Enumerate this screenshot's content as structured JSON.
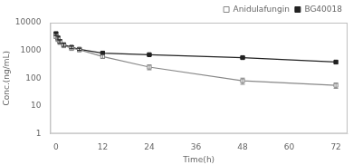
{
  "chart_data": {
    "type": "line",
    "xlabel": "Time(h)",
    "ylabel": "Conc.(ng/mL)",
    "x": [
      0,
      0.5,
      1,
      2,
      4,
      6,
      12,
      24,
      48,
      72
    ],
    "series": [
      {
        "name": "Anidulafungin",
        "color": "#888888",
        "marker": "square_open",
        "values": [
          3200,
          2500,
          2000,
          1500,
          1200,
          1050,
          600,
          250,
          80,
          55
        ],
        "yerr": [
          500,
          400,
          350,
          250,
          200,
          150,
          80,
          50,
          20,
          12
        ]
      },
      {
        "name": "BG40018",
        "color": "#222222",
        "marker": "square",
        "values": [
          4000,
          2800,
          2100,
          1600,
          1300,
          1100,
          800,
          700,
          550,
          380
        ],
        "yerr": [
          600,
          400,
          300,
          200,
          150,
          100,
          80,
          60,
          50,
          40
        ]
      }
    ],
    "xlim": [
      -1.5,
      75
    ],
    "xticks": [
      0,
      12,
      24,
      36,
      48,
      60,
      72
    ],
    "ylim": [
      1,
      10000
    ],
    "yticks": [
      1,
      10,
      100,
      1000,
      10000
    ],
    "log": "y",
    "grid": false,
    "legend": "upper right"
  }
}
